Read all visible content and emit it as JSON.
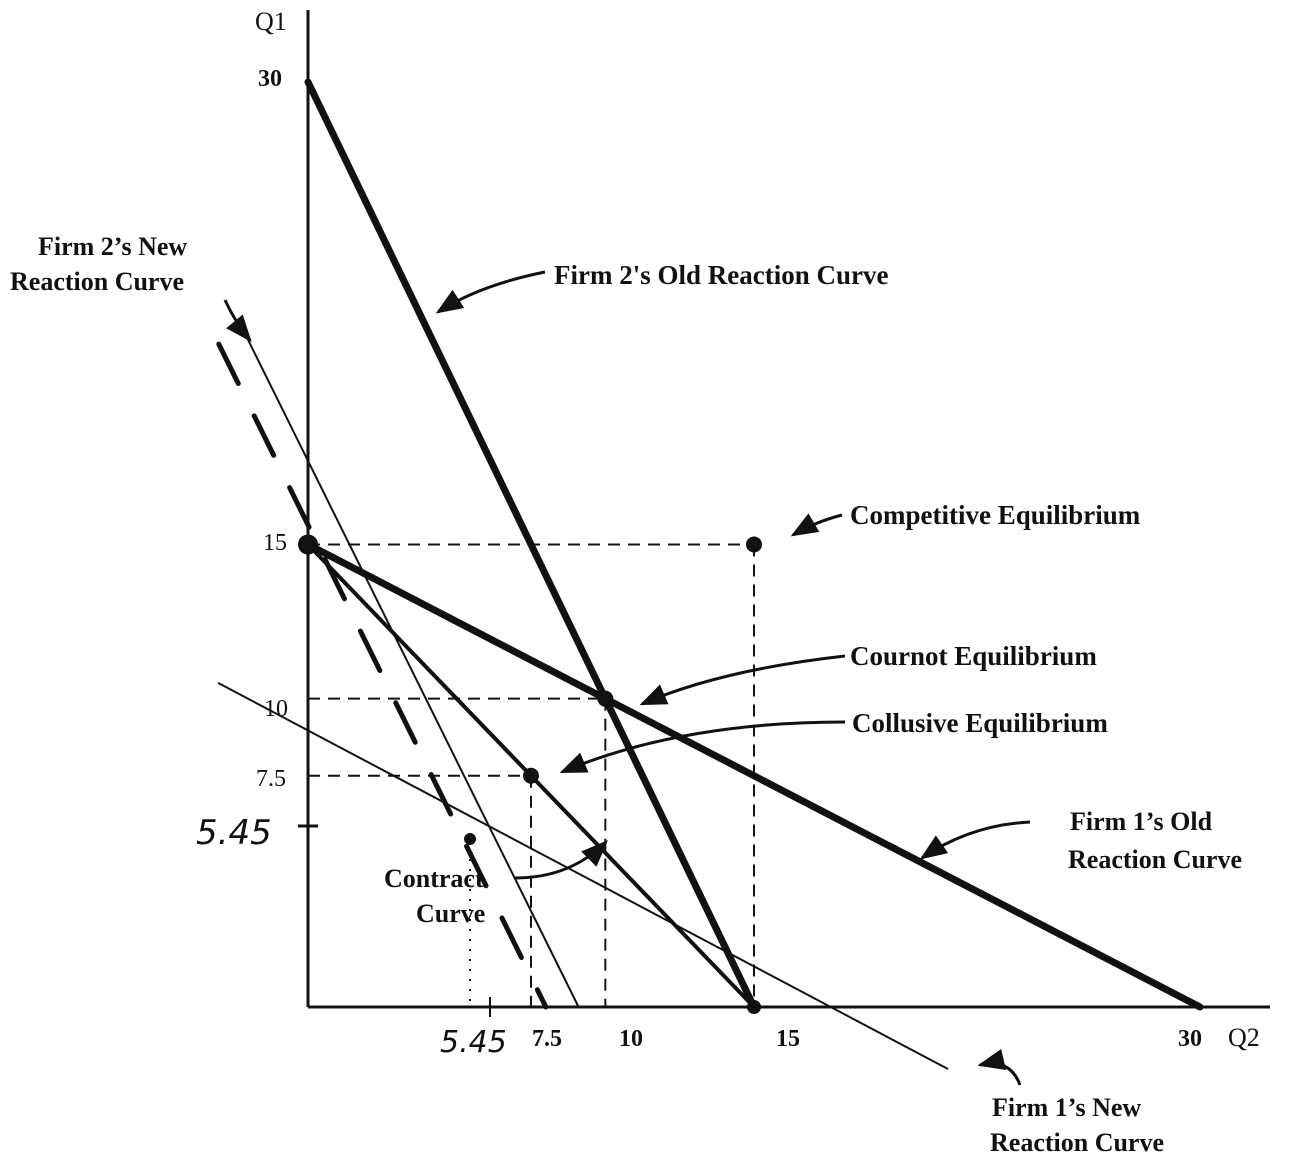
{
  "chart_data": {
    "type": "line",
    "xlabel": "Q2",
    "ylabel": "Q1",
    "xlim": [
      0,
      30
    ],
    "ylim": [
      0,
      30
    ],
    "x_ticks": [
      "5.45",
      "7.5",
      "10",
      "15",
      "30"
    ],
    "y_ticks": [
      "30",
      "15",
      "10",
      "7.5",
      "5.45"
    ],
    "series": [
      {
        "name": "Firm 2's Old Reaction Curve",
        "x": [
          0,
          15
        ],
        "y": [
          30,
          0
        ],
        "style": "thick"
      },
      {
        "name": "Firm 1's Old Reaction Curve",
        "x": [
          0,
          30
        ],
        "y": [
          15,
          0
        ],
        "style": "thick"
      },
      {
        "name": "Contract Curve",
        "x": [
          0,
          15
        ],
        "y": [
          15,
          0
        ],
        "style": "medium"
      },
      {
        "name": "Firm 2's New Reaction Curve",
        "x": [
          -2.1,
          9.1
        ],
        "y": [
          21.8,
          0
        ],
        "style": "thin"
      },
      {
        "name": "Firm 1's New Reaction Curve",
        "x": [
          -3,
          21.5
        ],
        "y": [
          10.5,
          -2
        ],
        "style": "thin"
      },
      {
        "name": "",
        "x": [
          -3,
          8.0
        ],
        "y": [
          21.5,
          0
        ],
        "style": "dashed-heavy"
      }
    ],
    "points": [
      {
        "name": "Competitive Equilibrium",
        "x": 15,
        "y": 15
      },
      {
        "name": "Cournot Equilibrium",
        "x": 10,
        "y": 10
      },
      {
        "name": "Collusive Equilibrium",
        "x": 7.5,
        "y": 7.5
      },
      {
        "name": "",
        "x": 5.45,
        "y": 5.45
      }
    ],
    "annotations": {
      "competitive": "Competitive Equilibrium",
      "cournot": "Cournot Equilibrium",
      "collusive": "Collusive Equilibrium",
      "firm2_old": "Firm 2's Old Reaction Curve",
      "firm2_new_line1": "Firm 2’s New",
      "firm2_new_line2": "Reaction Curve",
      "firm1_old_line1": "Firm 1’s Old",
      "firm1_old_line2": "Reaction Curve",
      "firm1_new_line1": "Firm 1’s New",
      "firm1_new_line2": "Reaction Curve",
      "contract_line1": "Contract",
      "contract_line2": "Curve"
    },
    "grid": false,
    "colors": {
      "ink": "#111111",
      "background": "#ffffff"
    }
  }
}
